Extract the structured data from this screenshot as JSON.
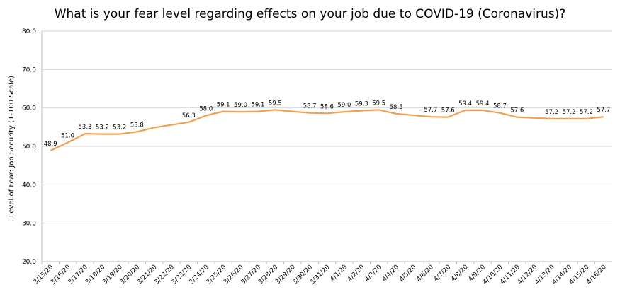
{
  "chart_data": {
    "type": "line",
    "title": "What is your fear level regarding effects on your job due to COVID-19 (Coronavirus)?",
    "xlabel": "",
    "ylabel": "Level of Fear: Job Security (1-100 Scale)",
    "ylim": [
      20,
      80
    ],
    "yticks": [
      "20.0",
      "30.0",
      "40.0",
      "50.0",
      "60.0",
      "70.0",
      "80.0"
    ],
    "grid": true,
    "line_color": "#f0a050",
    "x": [
      "3/15/20",
      "3/16/20",
      "3/17/20",
      "3/18/20",
      "3/19/20",
      "3/20/20",
      "3/21/20",
      "3/22/20",
      "3/23/20",
      "3/24/20",
      "3/25/20",
      "3/26/20",
      "3/27/20",
      "3/28/20",
      "3/29/20",
      "3/30/20",
      "3/31/20",
      "4/1/20",
      "4/2/20",
      "4/3/20",
      "4/4/20",
      "4/5/20",
      "4/6/20",
      "4/7/20",
      "4/8/20",
      "4/9/20",
      "4/10/20",
      "4/11/20",
      "4/12/20",
      "4/13/20",
      "4/14/20",
      "4/15/20",
      "4/16/20"
    ],
    "values": [
      48.9,
      51.0,
      53.3,
      53.2,
      53.2,
      53.8,
      54.9,
      55.6,
      56.3,
      58.0,
      59.1,
      59.0,
      59.1,
      59.5,
      59.1,
      58.7,
      58.6,
      59.0,
      59.3,
      59.5,
      58.5,
      58.1,
      57.7,
      57.6,
      59.4,
      59.4,
      58.7,
      57.6,
      57.4,
      57.2,
      57.2,
      57.2,
      57.7
    ],
    "data_labels": [
      "48.9",
      "51.0",
      "53.3",
      "53.2",
      "53.2",
      "53.8",
      "",
      "",
      "56.3",
      "58.0",
      "59.1",
      "59.0",
      "59.1",
      "59.5",
      "",
      "58.7",
      "58.6",
      "59.0",
      "59.3",
      "59.5",
      "58.5",
      "",
      "57.7",
      "57.6",
      "59.4",
      "59.4",
      "58.7",
      "57.6",
      "",
      "57.2",
      "57.2",
      "57.2",
      "57.7"
    ]
  }
}
